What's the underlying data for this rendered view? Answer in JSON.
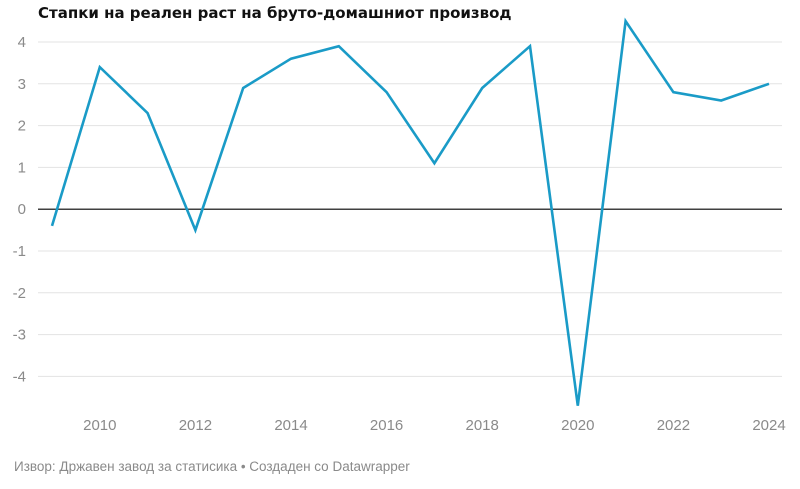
{
  "chart_data": {
    "type": "line",
    "title": "Стапки на реален раст на бруто-домашниот производ",
    "xlabel": "",
    "ylabel": "",
    "x": [
      2009,
      2010,
      2011,
      2012,
      2013,
      2014,
      2015,
      2016,
      2017,
      2018,
      2019,
      2020,
      2021,
      2022,
      2023,
      2024
    ],
    "series": [
      {
        "values": [
          -0.4,
          3.4,
          2.3,
          -0.5,
          2.9,
          3.6,
          3.9,
          2.8,
          1.1,
          2.9,
          3.9,
          -4.7,
          4.5,
          2.8,
          2.6,
          3.0
        ]
      }
    ],
    "y_ticks": [
      4,
      3,
      2,
      1,
      0,
      -1,
      -2,
      -3,
      -4
    ],
    "y_tick_labels": [
      "4",
      "3",
      "2",
      "1",
      "0",
      "-1",
      "-2",
      "-3",
      "-4"
    ],
    "x_ticks": [
      2010,
      2012,
      2014,
      2016,
      2018,
      2020,
      2022,
      2024
    ],
    "x_tick_labels": [
      "2010",
      "2012",
      "2014",
      "2016",
      "2018",
      "2020",
      "2022",
      "2024"
    ],
    "xlim": [
      2009,
      2024
    ],
    "ylim": [
      -4.7,
      4.5
    ],
    "grid": true,
    "line_color": "#1a9bc7",
    "zero_line_color": "#000000",
    "grid_color": "#e3e3e3"
  },
  "footer": {
    "source": "Извор: Државен завод за статисика • Создаден со Datawrapper"
  }
}
